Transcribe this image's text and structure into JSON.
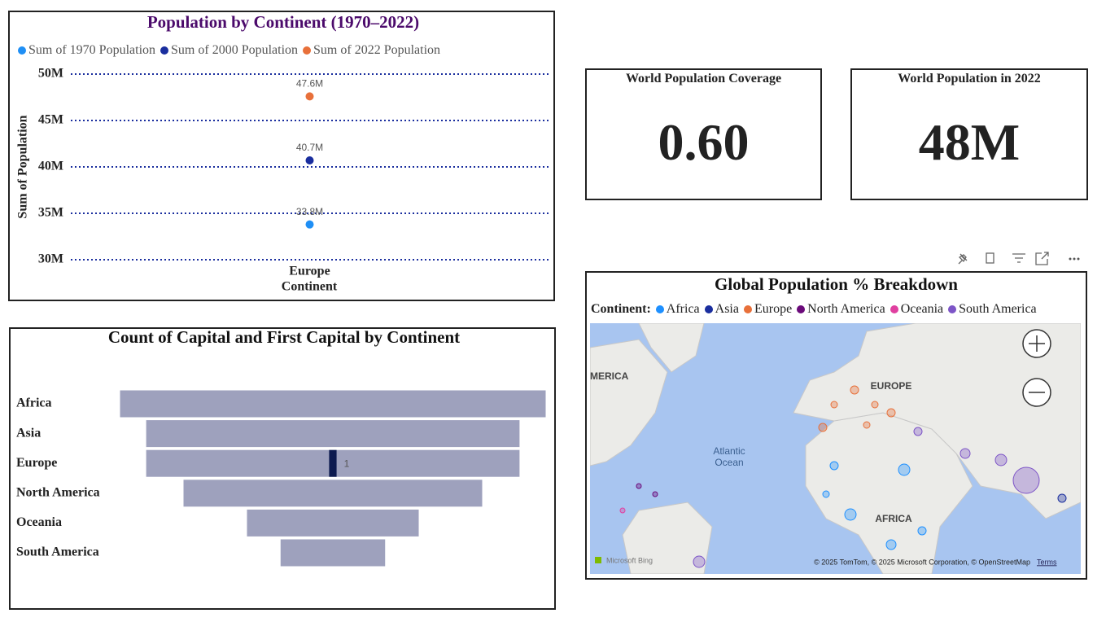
{
  "chart_data": [
    {
      "type": "dot",
      "title": "Population by Continent (1970–2022)",
      "x_label": "Continent",
      "y_label": "Sum of Population",
      "categories": [
        "Europe"
      ],
      "series": [
        {
          "name": "Sum of 1970 Population",
          "color": "#1f8ff5",
          "values": [
            33800000
          ],
          "value_labels": [
            "33.8M"
          ]
        },
        {
          "name": "Sum of 2000 Population",
          "color": "#1a2e9e",
          "values": [
            40700000
          ],
          "value_labels": [
            "40.7M"
          ]
        },
        {
          "name": "Sum of 2022 Population",
          "color": "#e8703a",
          "values": [
            47600000
          ],
          "value_labels": [
            "47.6M"
          ]
        }
      ],
      "ylim": [
        30000000,
        50000000
      ],
      "yticks": [
        {
          "value": 30000000,
          "label": "30M"
        },
        {
          "value": 35000000,
          "label": "35M"
        },
        {
          "value": 40000000,
          "label": "40M"
        },
        {
          "value": 45000000,
          "label": "45M"
        },
        {
          "value": 50000000,
          "label": "50M"
        }
      ],
      "grid": true
    },
    {
      "type": "funnel",
      "title": "Count of Capital and First Capital by Continent",
      "categories": [
        "Africa",
        "Asia",
        "Europe",
        "North America",
        "Oceania",
        "South America"
      ],
      "values": [
        57,
        50,
        50,
        40,
        23,
        14
      ],
      "color": "#9ea1bd",
      "first_capital_values": [
        null,
        null,
        1,
        null,
        null,
        null
      ],
      "first_capital_color": "#0d1a4f"
    }
  ],
  "cards": [
    {
      "title": "World Population Coverage",
      "value": "0.60"
    },
    {
      "title": "World Population in 2022",
      "value": "48M"
    }
  ],
  "map": {
    "title": "Global Population % Breakdown",
    "legend_title": "Continent:",
    "legend": [
      {
        "name": "Africa",
        "color": "#1e90ff"
      },
      {
        "name": "Asia",
        "color": "#1a2e9e"
      },
      {
        "name": "Europe",
        "color": "#e8703a"
      },
      {
        "name": "North America",
        "color": "#6b0a7a"
      },
      {
        "name": "Oceania",
        "color": "#e040a0"
      },
      {
        "name": "South America",
        "color": "#7d55c7"
      }
    ],
    "labels": [
      "MERICA",
      "EUROPE",
      "Atlantic",
      "Ocean",
      "AFRICA"
    ],
    "brand": "Microsoft Bing",
    "attribution": "© 2025 TomTom, © 2025 Microsoft Corporation, © OpenStreetMap",
    "terms": "Terms"
  }
}
